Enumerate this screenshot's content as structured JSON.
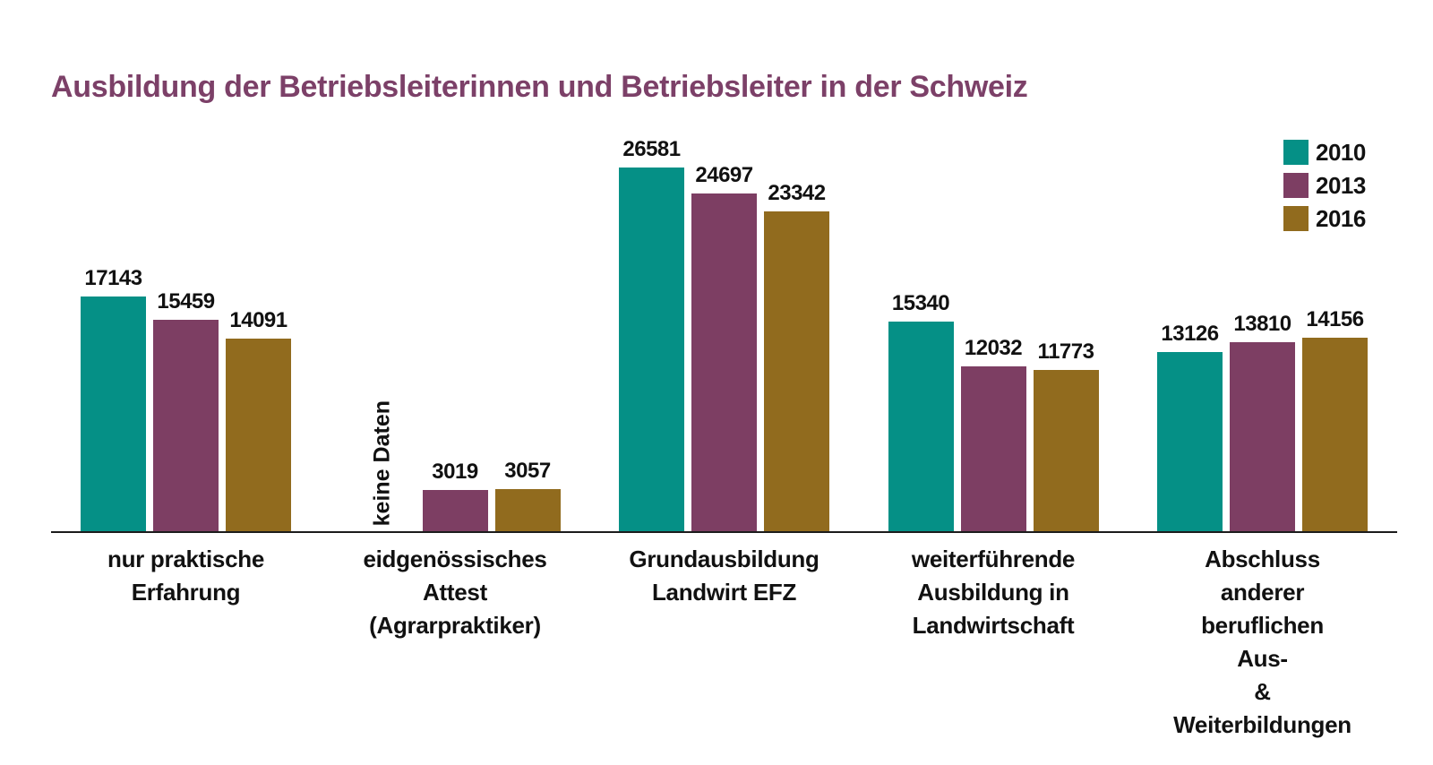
{
  "title": "Ausbildung der Betriebsleiterinnen und Betriebsleiter in der Schweiz",
  "colors": {
    "title": "#7C4068",
    "axis": "#1c1c1c",
    "label_text": "#111111",
    "series_2010": "#059086",
    "series_2013": "#7D3E63",
    "series_2016": "#916B1E"
  },
  "chart_data": {
    "type": "bar",
    "title": "Ausbildung der Betriebsleiterinnen und Betriebsleiter in der Schweiz",
    "categories": [
      "nur praktische\nErfahrung",
      "eidgenössisches\nAttest\n(Agrarpraktiker)",
      "Grundausbildung\nLandwirt EFZ",
      "weiterführende\nAusbildung in\nLandwirtschaft",
      "Abschluss anderer\nberuflichen Aus-\n& Weiterbildungen"
    ],
    "series": [
      {
        "name": "2010",
        "color": "#059086",
        "values": [
          17143,
          null,
          26581,
          15340,
          13126
        ]
      },
      {
        "name": "2013",
        "color": "#7D3E63",
        "values": [
          15459,
          3019,
          24697,
          12032,
          13810
        ]
      },
      {
        "name": "2016",
        "color": "#916B1E",
        "values": [
          14091,
          3057,
          23342,
          11773,
          14156
        ]
      }
    ],
    "missing_value_label": "keine Daten",
    "value_labels": true,
    "grid": false,
    "legend_position": "top-right",
    "ylim": [
      0,
      27000
    ],
    "xlabel": "",
    "ylabel": ""
  }
}
